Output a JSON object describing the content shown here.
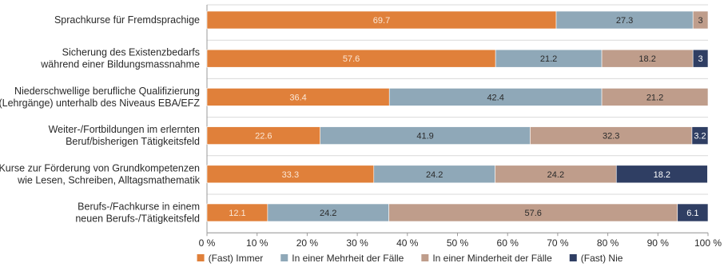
{
  "chart_data": {
    "type": "bar",
    "orientation": "horizontal",
    "stacked": true,
    "categories": [
      [
        "Sprachkurse für Fremdsprachige"
      ],
      [
        "Sicherung des Existenzbedarfs",
        "während einer Bildungsmassnahme"
      ],
      [
        "Niederschwellige berufliche Qualifizierung",
        "(Lehrgänge) unterhalb des Niveaus EBA/EFZ"
      ],
      [
        "Weiter-/Fortbildungen im erlernten",
        "Beruf/bisherigen Tätigkeitsfeld"
      ],
      [
        "Kurse zur Förderung von Grundkompetenzen",
        "wie Lesen, Schreiben, Alltagsmathematik"
      ],
      [
        "Berufs-/Fachkurse in einem",
        "neuen Berufs-/Tätigkeitsfeld"
      ]
    ],
    "series": [
      {
        "name": "(Fast) Immer",
        "color": "#e0803a",
        "values": [
          69.7,
          57.6,
          36.4,
          22.6,
          33.3,
          12.1
        ]
      },
      {
        "name": "In einer Mehrheit der Fälle",
        "color": "#8fa8b8",
        "values": [
          27.3,
          21.2,
          42.4,
          41.9,
          24.2,
          24.2
        ]
      },
      {
        "name": "In einer Minderheit der Fälle",
        "color": "#bf9d8b",
        "values": [
          3,
          18.2,
          21.2,
          32.3,
          24.2,
          57.6
        ]
      },
      {
        "name": "(Fast) Nie",
        "color": "#2f3e63",
        "values": [
          0,
          3,
          0,
          3.2,
          18.2,
          6.1
        ]
      }
    ],
    "data_labels": [
      [
        "69.7",
        "27.3",
        "3",
        ""
      ],
      [
        "57.6",
        "21.2",
        "18.2",
        "3"
      ],
      [
        "36.4",
        "42.4",
        "21.2",
        ""
      ],
      [
        "22.6",
        "41.9",
        "32.3",
        "3.2"
      ],
      [
        "33.3",
        "24.2",
        "24.2",
        "18.2"
      ],
      [
        "12.1",
        "24.2",
        "57.6",
        "6.1"
      ]
    ],
    "xlim": [
      0,
      100
    ],
    "xticks": [
      "0 %",
      "10 %",
      "20 %",
      "30 %",
      "40 %",
      "50 %",
      "60 %",
      "70 %",
      "80 %",
      "90 %",
      "100 %"
    ],
    "grid": "horizontal-separators",
    "legend_position": "bottom",
    "title": "",
    "xlabel": "",
    "ylabel": ""
  }
}
